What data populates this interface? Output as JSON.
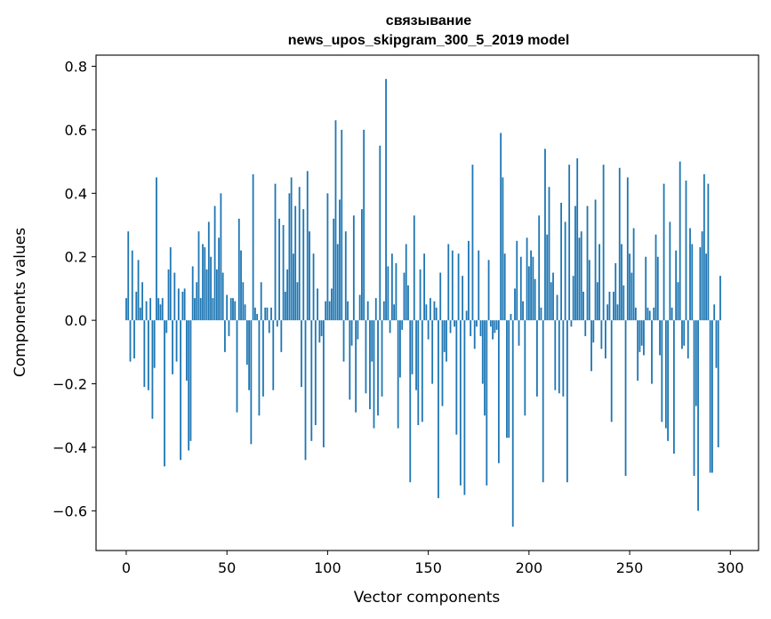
{
  "chart_data": {
    "type": "bar",
    "title_line1": "связывание",
    "title_line2": "news_upos_skipgram_300_5_2019 model",
    "xlabel": "Vector components",
    "ylabel": "Components values",
    "xlim": [
      -15,
      314
    ],
    "ylim": [
      -0.725,
      0.835
    ],
    "xticks": [
      0,
      50,
      100,
      150,
      200,
      250,
      300
    ],
    "xtick_labels": [
      "0",
      "50",
      "100",
      "150",
      "200",
      "250",
      "300"
    ],
    "yticks": [
      -0.6,
      -0.4,
      -0.2,
      0.0,
      0.2,
      0.4,
      0.6,
      0.8
    ],
    "ytick_labels": [
      "−0.6",
      "−0.4",
      "−0.2",
      "0.0",
      "0.2",
      "0.4",
      "0.6",
      "0.8"
    ],
    "bar_color": "#1f77b4",
    "values": [
      0.07,
      0.28,
      -0.13,
      0.22,
      -0.12,
      0.09,
      0.19,
      0.04,
      0.12,
      -0.21,
      0.06,
      -0.22,
      0.07,
      -0.31,
      -0.15,
      0.45,
      0.07,
      0.05,
      0.07,
      -0.46,
      -0.04,
      0.16,
      0.23,
      -0.17,
      0.15,
      -0.13,
      0.1,
      -0.44,
      0.09,
      0.1,
      -0.19,
      -0.41,
      -0.38,
      0.17,
      0.07,
      0.12,
      0.28,
      0.07,
      0.24,
      0.23,
      0.16,
      0.31,
      0.2,
      0.07,
      0.36,
      0.16,
      0.26,
      0.4,
      0.15,
      -0.1,
      0.08,
      -0.05,
      0.07,
      0.07,
      0.06,
      -0.29,
      0.32,
      0.22,
      0.12,
      0.05,
      -0.14,
      -0.22,
      -0.39,
      0.46,
      0.04,
      0.02,
      -0.3,
      0.12,
      -0.24,
      0.04,
      0.04,
      -0.04,
      0.04,
      -0.22,
      0.43,
      -0.02,
      0.32,
      -0.1,
      0.3,
      0.09,
      0.16,
      0.4,
      0.45,
      0.21,
      0.36,
      0.12,
      0.42,
      -0.21,
      0.35,
      -0.44,
      0.47,
      0.28,
      -0.38,
      0.21,
      -0.33,
      0.1,
      -0.07,
      -0.05,
      -0.4,
      0.06,
      0.4,
      0.06,
      0.1,
      0.32,
      0.63,
      0.24,
      0.38,
      0.6,
      -0.13,
      0.28,
      0.06,
      -0.25,
      -0.08,
      0.33,
      -0.29,
      -0.06,
      0.08,
      0.35,
      0.6,
      -0.23,
      0.06,
      -0.28,
      -0.13,
      -0.34,
      0.07,
      -0.3,
      0.55,
      -0.24,
      0.06,
      0.76,
      0.17,
      -0.04,
      0.21,
      0.05,
      0.18,
      -0.34,
      -0.18,
      -0.03,
      0.15,
      0.24,
      0.11,
      -0.51,
      -0.17,
      0.33,
      -0.22,
      -0.33,
      0.16,
      -0.32,
      0.21,
      0.05,
      -0.06,
      0.07,
      -0.2,
      0.06,
      0.04,
      -0.56,
      0.15,
      -0.27,
      -0.1,
      -0.13,
      0.24,
      -0.04,
      0.22,
      -0.02,
      -0.36,
      0.21,
      -0.52,
      0.14,
      -0.55,
      0.03,
      0.25,
      -0.05,
      0.49,
      -0.09,
      -0.02,
      0.22,
      -0.05,
      -0.2,
      -0.3,
      -0.52,
      0.19,
      -0.02,
      -0.06,
      -0.04,
      -0.03,
      -0.45,
      0.59,
      0.45,
      0.21,
      -0.37,
      -0.37,
      0.02,
      -0.65,
      0.1,
      0.25,
      -0.08,
      0.2,
      0.06,
      -0.3,
      0.26,
      0.17,
      0.22,
      0.2,
      0.13,
      -0.24,
      0.33,
      0.04,
      -0.51,
      0.54,
      0.27,
      0.42,
      0.12,
      0.15,
      -0.22,
      0.08,
      -0.23,
      0.37,
      -0.24,
      0.31,
      -0.51,
      0.49,
      -0.02,
      0.14,
      0.36,
      0.51,
      0.26,
      0.28,
      0.09,
      -0.05,
      0.36,
      0.19,
      -0.16,
      -0.07,
      0.38,
      0.12,
      0.24,
      -0.09,
      0.49,
      -0.12,
      0.05,
      0.09,
      -0.32,
      0.09,
      0.18,
      0.05,
      0.48,
      0.24,
      0.11,
      -0.49,
      0.45,
      0.21,
      0.15,
      0.29,
      0.04,
      -0.19,
      -0.1,
      -0.08,
      -0.11,
      0.2,
      0.04,
      0.03,
      -0.2,
      0.04,
      0.27,
      0.2,
      -0.11,
      -0.32,
      0.43,
      -0.34,
      -0.38,
      0.31,
      0.04,
      -0.42,
      0.22,
      0.12,
      0.5,
      -0.09,
      -0.08,
      0.44,
      -0.12,
      0.29,
      0.24,
      -0.49,
      -0.27,
      -0.6,
      0.23,
      0.28,
      0.46,
      0.21,
      0.43,
      -0.48,
      -0.48,
      0.05,
      -0.15,
      -0.4,
      0.14
    ]
  }
}
